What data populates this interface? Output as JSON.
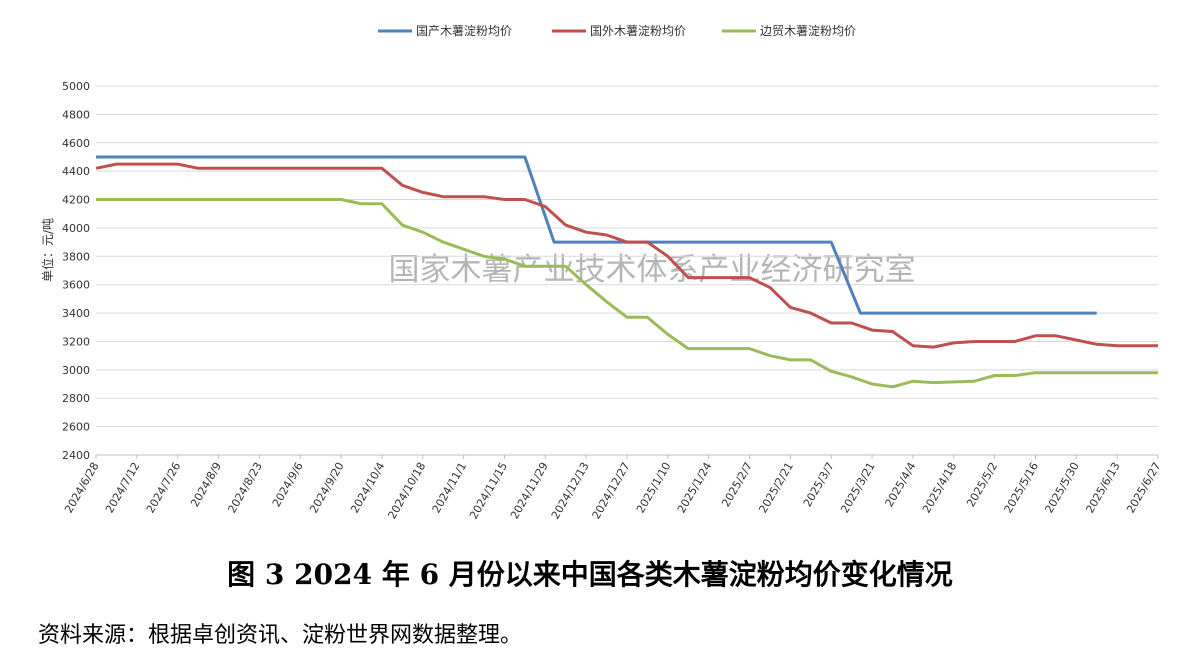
{
  "chart_data": {
    "type": "line",
    "ylabel": "单位：元/吨",
    "ylim": [
      2400,
      5000
    ],
    "ytick_step": 200,
    "grid": true,
    "legend_position": "top-center",
    "watermark": "国家木薯产业技术体系产业经济研究室",
    "x_ticks": [
      "2024/6/28",
      "2024/7/12",
      "2024/7/26",
      "2024/8/9",
      "2024/8/23",
      "2024/9/6",
      "2024/9/20",
      "2024/10/4",
      "2024/10/18",
      "2024/11/1",
      "2024/11/15",
      "2024/11/29",
      "2024/12/13",
      "2024/12/27",
      "2025/1/10",
      "2025/1/24",
      "2025/2/7",
      "2025/2/21",
      "2025/3/7",
      "2025/3/21",
      "2025/4/4",
      "2025/4/18",
      "2025/5/2",
      "2025/5/16",
      "2025/5/30",
      "2025/6/13",
      "2025/6/27"
    ],
    "series": [
      {
        "name": "国产木薯淀粉均价",
        "color": "#4f81bd",
        "points": [
          [
            "2024/6/28",
            4500
          ],
          [
            "2024/11/22",
            4500
          ],
          [
            "2024/12/2",
            3900
          ],
          [
            "2025/3/7",
            3900
          ],
          [
            "2025/3/17",
            3400
          ],
          [
            "2025/6/6",
            3400
          ]
        ]
      },
      {
        "name": "国外木薯淀粉均价",
        "color": "#c0504d",
        "points": [
          [
            "2024/6/28",
            4420
          ],
          [
            "2024/7/5",
            4450
          ],
          [
            "2024/7/26",
            4450
          ],
          [
            "2024/8/2",
            4420
          ],
          [
            "2024/10/4",
            4420
          ],
          [
            "2024/10/11",
            4300
          ],
          [
            "2024/10/18",
            4250
          ],
          [
            "2024/10/25",
            4220
          ],
          [
            "2024/11/8",
            4220
          ],
          [
            "2024/11/15",
            4200
          ],
          [
            "2024/11/22",
            4200
          ],
          [
            "2024/11/29",
            4150
          ],
          [
            "2024/12/6",
            4020
          ],
          [
            "2024/12/13",
            3970
          ],
          [
            "2024/12/20",
            3950
          ],
          [
            "2024/12/27",
            3900
          ],
          [
            "2025/1/3",
            3900
          ],
          [
            "2025/1/10",
            3800
          ],
          [
            "2025/1/17",
            3650
          ],
          [
            "2025/1/24",
            3650
          ],
          [
            "2025/2/7",
            3650
          ],
          [
            "2025/2/14",
            3580
          ],
          [
            "2025/2/21",
            3440
          ],
          [
            "2025/2/28",
            3400
          ],
          [
            "2025/3/7",
            3330
          ],
          [
            "2025/3/14",
            3330
          ],
          [
            "2025/3/21",
            3280
          ],
          [
            "2025/3/28",
            3270
          ],
          [
            "2025/4/4",
            3170
          ],
          [
            "2025/4/11",
            3160
          ],
          [
            "2025/4/18",
            3190
          ],
          [
            "2025/4/25",
            3200
          ],
          [
            "2025/5/9",
            3200
          ],
          [
            "2025/5/16",
            3240
          ],
          [
            "2025/5/23",
            3240
          ],
          [
            "2025/5/30",
            3210
          ],
          [
            "2025/6/6",
            3180
          ],
          [
            "2025/6/13",
            3170
          ],
          [
            "2025/6/27",
            3170
          ]
        ]
      },
      {
        "name": "边贸木薯淀粉均价",
        "color": "#9bbb59",
        "points": [
          [
            "2024/6/28",
            4200
          ],
          [
            "2024/9/20",
            4200
          ],
          [
            "2024/9/27",
            4170
          ],
          [
            "2024/10/4",
            4170
          ],
          [
            "2024/10/11",
            4020
          ],
          [
            "2024/10/18",
            3970
          ],
          [
            "2024/10/25",
            3900
          ],
          [
            "2024/11/1",
            3850
          ],
          [
            "2024/11/8",
            3800
          ],
          [
            "2024/11/15",
            3780
          ],
          [
            "2024/11/22",
            3730
          ],
          [
            "2024/12/6",
            3730
          ],
          [
            "2024/12/13",
            3600
          ],
          [
            "2024/12/20",
            3480
          ],
          [
            "2024/12/27",
            3370
          ],
          [
            "2025/1/3",
            3370
          ],
          [
            "2025/1/10",
            3250
          ],
          [
            "2025/1/17",
            3150
          ],
          [
            "2025/1/24",
            3150
          ],
          [
            "2025/2/7",
            3150
          ],
          [
            "2025/2/14",
            3100
          ],
          [
            "2025/2/21",
            3070
          ],
          [
            "2025/2/28",
            3070
          ],
          [
            "2025/3/7",
            2990
          ],
          [
            "2025/3/14",
            2950
          ],
          [
            "2025/3/21",
            2900
          ],
          [
            "2025/3/28",
            2880
          ],
          [
            "2025/4/4",
            2920
          ],
          [
            "2025/4/11",
            2910
          ],
          [
            "2025/4/25",
            2920
          ],
          [
            "2025/5/2",
            2960
          ],
          [
            "2025/5/9",
            2960
          ],
          [
            "2025/5/16",
            2980
          ],
          [
            "2025/6/27",
            2980
          ]
        ]
      }
    ]
  },
  "caption": "图 3   2024 年 6 月份以来中国各类木薯淀粉均价变化情况",
  "source": "资料来源：根据卓创资讯、淀粉世界网数据整理。"
}
